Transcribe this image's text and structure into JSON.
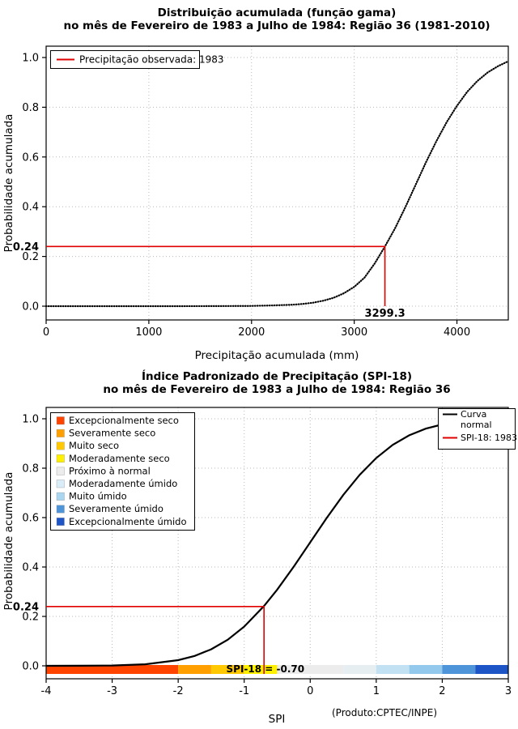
{
  "chart_data": [
    {
      "type": "line",
      "title_line1": "Distribuição acumulada (função gama)",
      "title_line2": "no mês de Fevereiro de 1983 a Julho de 1984: Região 36 (1981-2010)",
      "xlabel": "Precipitação acumulada (mm)",
      "ylabel": "Probabilidade acumulada",
      "xlim": [
        0,
        4500
      ],
      "ylim": [
        0,
        1
      ],
      "grid": true,
      "xticks": [
        0,
        1000,
        2000,
        3000,
        4000
      ],
      "xtick_labels": [
        "0",
        "1000",
        "2000",
        "3000",
        "4000"
      ],
      "yticks": [
        0.0,
        0.2,
        0.4,
        0.6,
        0.8,
        1.0
      ],
      "ytick_labels": [
        "0.0",
        "0.2",
        "0.4",
        "0.6",
        "0.8",
        "1.0"
      ],
      "curve": {
        "name": "Distribuição acumulada (função gama)",
        "color": "#000000",
        "style": "dotted",
        "x": [
          0,
          400,
          800,
          1200,
          1600,
          2000,
          2200,
          2400,
          2500,
          2600,
          2700,
          2800,
          2900,
          3000,
          3100,
          3200,
          3299.3,
          3400,
          3500,
          3600,
          3700,
          3800,
          3900,
          4000,
          4100,
          4200,
          4300,
          4400,
          4500
        ],
        "y": [
          0,
          0,
          0,
          0,
          0.0002,
          0.001,
          0.003,
          0.006,
          0.009,
          0.014,
          0.022,
          0.034,
          0.052,
          0.078,
          0.115,
          0.172,
          0.24,
          0.315,
          0.4,
          0.49,
          0.58,
          0.664,
          0.74,
          0.806,
          0.862,
          0.906,
          0.94,
          0.965,
          0.985
        ]
      },
      "annotation": {
        "prob": 0.24,
        "prob_label": "0.24",
        "x": 3299.3,
        "x_label": "3299.3",
        "color": "#e00000"
      },
      "legend": {
        "position": "top-left",
        "items": [
          {
            "label": "Precipitação observada: 1983",
            "marker": "line",
            "color": "#e00000"
          }
        ]
      }
    },
    {
      "type": "line",
      "title_line1": "Índice Padronizado de Precipitação (SPI-18)",
      "title_line2": "no mês de Fevereiro de 1983 a Julho de 1984: Região 36",
      "xlabel": "SPI",
      "ylabel": "Probabilidade acumulada",
      "footnote": "(Produto:CPTEC/INPE)",
      "xlim": [
        -4,
        3
      ],
      "ylim": [
        0,
        1
      ],
      "grid": true,
      "xticks": [
        -4,
        -3,
        -2,
        -1,
        0,
        1,
        2,
        3
      ],
      "xtick_labels": [
        "-4",
        "-3",
        "-2",
        "-1",
        "0",
        "1",
        "2",
        "3"
      ],
      "yticks": [
        0.0,
        0.2,
        0.4,
        0.6,
        0.8,
        1.0
      ],
      "ytick_labels": [
        "0.0",
        "0.2",
        "0.4",
        "0.6",
        "0.8",
        "1.0"
      ],
      "curve": {
        "name": "Curva normal",
        "color": "#000000",
        "style": "solid",
        "x": [
          -4,
          -3.5,
          -3,
          -2.5,
          -2,
          -1.75,
          -1.5,
          -1.25,
          -1,
          -0.7,
          -0.5,
          -0.25,
          0,
          0.25,
          0.5,
          0.75,
          1,
          1.25,
          1.5,
          1.75,
          2,
          2.25,
          2.5,
          2.75,
          3
        ],
        "y": [
          0.0,
          0.0002,
          0.0013,
          0.0062,
          0.0228,
          0.0401,
          0.0668,
          0.1056,
          0.1587,
          0.242,
          0.3085,
          0.4013,
          0.5,
          0.5987,
          0.6915,
          0.7734,
          0.8413,
          0.8944,
          0.9332,
          0.9599,
          0.9772,
          0.9878,
          0.9938,
          0.997,
          0.9987
        ]
      },
      "annotation": {
        "prob": 0.24,
        "prob_label": "0.24",
        "x": -0.7,
        "color": "#e00000",
        "bar_label": "SPI-18 = -0.70",
        "bar_label_x": -0.68
      },
      "legend_categories": {
        "position": "top-left",
        "items": [
          {
            "label": "Excepcionalmente seco",
            "color": "#ff4400"
          },
          {
            "label": "Severamente seco",
            "color": "#ffa000"
          },
          {
            "label": "Muito seco",
            "color": "#ffc800"
          },
          {
            "label": "Moderadamente seco",
            "color": "#ffef00"
          },
          {
            "label": "Próximo à normal",
            "color": "#ececec"
          },
          {
            "label": "Moderadamente úmido",
            "color": "#d9edf8"
          },
          {
            "label": "Muito úmido",
            "color": "#a9d7f1"
          },
          {
            "label": "Severamente úmido",
            "color": "#4d94d9"
          },
          {
            "label": "Excepcionalmente úmido",
            "color": "#1e55c6"
          }
        ]
      },
      "legend_lines": {
        "position": "top-right",
        "items": [
          {
            "label_lines": [
              "Curva",
              "normal"
            ],
            "label": "Curva normal",
            "color": "#000000"
          },
          {
            "label_lines": [
              "SPI-18: 1983"
            ],
            "label": "SPI-18: 1983",
            "color": "#e00000"
          }
        ]
      },
      "colorbar": {
        "segments": [
          {
            "from": -4.0,
            "to": -2.0,
            "color": "#ff4400"
          },
          {
            "from": -2.0,
            "to": -1.5,
            "color": "#ffa000"
          },
          {
            "from": -1.5,
            "to": -1.0,
            "color": "#ffc800"
          },
          {
            "from": -1.0,
            "to": -0.5,
            "color": "#ffef00"
          },
          {
            "from": -0.5,
            "to": 0.5,
            "color": "#ececec"
          },
          {
            "from": 0.5,
            "to": 1.0,
            "color": "#e6eef2"
          },
          {
            "from": 1.0,
            "to": 1.5,
            "color": "#c2e2f4"
          },
          {
            "from": 1.5,
            "to": 2.0,
            "color": "#93c9ec"
          },
          {
            "from": 2.0,
            "to": 2.5,
            "color": "#4d94d9"
          },
          {
            "from": 2.5,
            "to": 3.0,
            "color": "#1e55c6"
          }
        ]
      }
    }
  ]
}
